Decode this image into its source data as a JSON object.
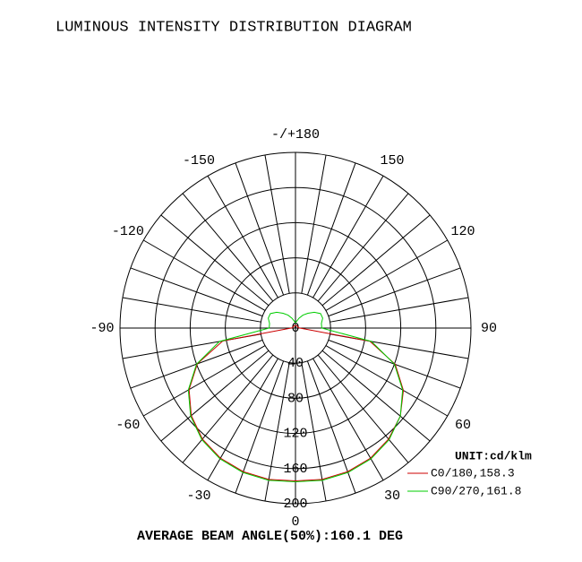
{
  "chart_data": {
    "type": "polar",
    "title": "LUMINOUS INTENSITY DISTRIBUTION DIAGRAM",
    "unit_label": "UNIT:cd/klm",
    "annotation": "AVERAGE BEAM ANGLE(50%):160.1 DEG",
    "x": [
      -180,
      -170,
      -160,
      -150,
      -140,
      -130,
      -120,
      -110,
      -100,
      -90,
      -80,
      -70,
      -60,
      -50,
      -40,
      -30,
      -20,
      -10,
      0,
      10,
      20,
      30,
      40,
      50,
      60,
      70,
      80,
      90,
      100,
      110,
      120,
      130,
      140,
      150,
      160,
      170,
      180
    ],
    "series": [
      {
        "name": "C0/180,158.3",
        "color": "#cc0000",
        "values": [
          3,
          3,
          3,
          3,
          3,
          3,
          3,
          3,
          3,
          5,
          84,
          119,
          140,
          155,
          165,
          171,
          174,
          175,
          174,
          175,
          174,
          171,
          165,
          156,
          142,
          121,
          86,
          5,
          3,
          3,
          3,
          3,
          3,
          3,
          3,
          3,
          3
        ]
      },
      {
        "name": "C90/270,161.8",
        "color": "#00cc00",
        "values": [
          6,
          8,
          12,
          17,
          22,
          28,
          33,
          33,
          30,
          30,
          88,
          120,
          141,
          156,
          166,
          172,
          175,
          176,
          175,
          176,
          175,
          172,
          166,
          156,
          141,
          120,
          88,
          30,
          30,
          33,
          33,
          28,
          22,
          17,
          12,
          8,
          6
        ]
      }
    ],
    "rlim": [
      0,
      200
    ],
    "rticks": [
      0,
      40,
      80,
      120,
      160,
      200
    ],
    "thetaticks": [
      0,
      30,
      60,
      90,
      120,
      150,
      {
        "value": 180,
        "label": "-/+180"
      },
      -150,
      -120,
      -90,
      -60,
      -30
    ]
  }
}
